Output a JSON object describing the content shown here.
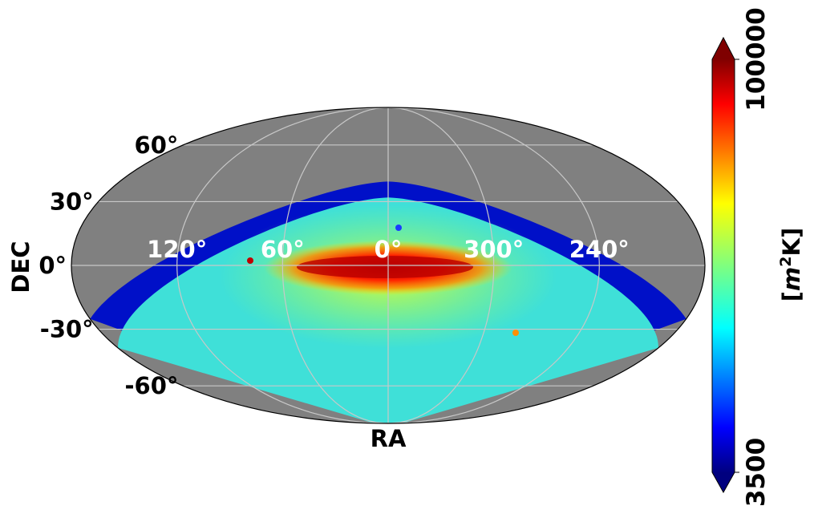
{
  "chart_data": {
    "type": "heatmap",
    "projection": "mollweide",
    "xlabel": "RA",
    "ylabel": "DEC",
    "ra_ticks": [
      {
        "value": 120,
        "label": "120°"
      },
      {
        "value": 60,
        "label": "60°"
      },
      {
        "value": 0,
        "label": "0°"
      },
      {
        "value": 300,
        "label": "300°"
      },
      {
        "value": 240,
        "label": "240°"
      }
    ],
    "dec_ticks": [
      {
        "value": 60,
        "label": "60°"
      },
      {
        "value": 30,
        "label": "30°"
      },
      {
        "value": 0,
        "label": "0°"
      },
      {
        "value": -30,
        "label": "-30°"
      },
      {
        "value": -60,
        "label": "-60°"
      }
    ],
    "grid": true,
    "colormap": "jet",
    "no_data_color": "#808080",
    "colorbar": {
      "min_label": "3500",
      "max_label": "100000",
      "min": 3500,
      "max": 100000,
      "label_parts": [
        "[",
        "m",
        "2",
        "K]"
      ],
      "extend": "both"
    },
    "coverage_dec_max_deg": 40,
    "galactic_band": {
      "dec_center_deg": -2,
      "ra_extent_deg": [
        -90,
        90
      ]
    }
  }
}
